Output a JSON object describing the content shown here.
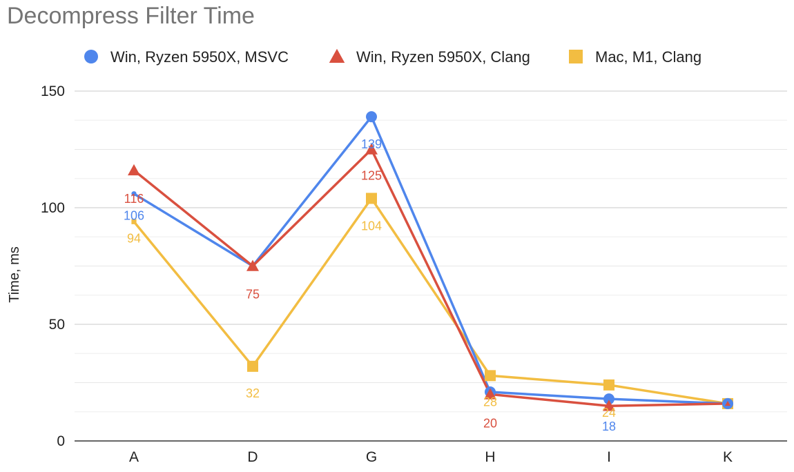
{
  "chart_data": {
    "type": "line",
    "title": "Decompress Filter Time",
    "ylabel": "Time, ms",
    "xlabel": "",
    "categories": [
      "A",
      "D",
      "G",
      "H",
      "I",
      "K"
    ],
    "ylim": [
      0,
      150
    ],
    "yticks": [
      0,
      50,
      100,
      150
    ],
    "minor_gridlines": true,
    "legend_position": "top",
    "series": [
      {
        "name": "Win, Ryzen 5950X, MSVC",
        "marker": "circle",
        "color": "#4f86ec",
        "values": [
          106,
          75,
          139,
          21,
          18,
          16
        ],
        "labels": [
          "106",
          "",
          "139",
          "",
          "18",
          ""
        ]
      },
      {
        "name": "Win, Ryzen 5950X, Clang",
        "marker": "triangle",
        "color": "#d9503f",
        "values": [
          116,
          75,
          125,
          20,
          15,
          16
        ],
        "labels": [
          "116",
          "75",
          "125",
          "20",
          "",
          ""
        ]
      },
      {
        "name": "Mac, M1, Clang",
        "marker": "square",
        "color": "#f2bd42",
        "values": [
          94,
          32,
          104,
          28,
          24,
          16
        ],
        "labels": [
          "94",
          "32",
          "104",
          "28",
          "24",
          ""
        ]
      }
    ]
  }
}
